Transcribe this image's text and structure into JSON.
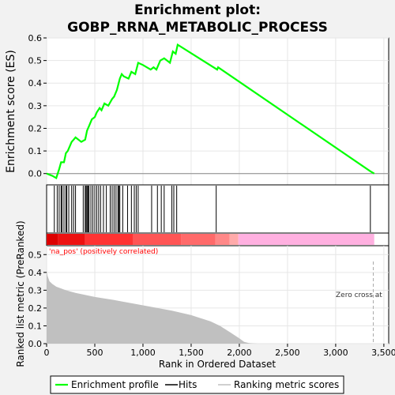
{
  "title_line1": "Enrichment plot:",
  "title_line2": "GOBP_RRNA_METABOLIC_PROCESS",
  "colors": {
    "es_line": "#00ff00",
    "hits": "#000000",
    "metric_fill": "#c0c0c0",
    "pos_note": "#ff0000",
    "zero_cross_line": "#aaaaaa",
    "bar_pos": "#ff0000",
    "bar_neg": "#ffb0e0"
  },
  "chart_data": [
    {
      "type": "line",
      "name": "enrichment-score-panel",
      "ylabel": "Enrichment score (ES)",
      "xlim": [
        0,
        3550
      ],
      "ylim": [
        -0.05,
        0.6
      ],
      "yticks": [
        "0.0",
        "0.1",
        "0.2",
        "0.3",
        "0.4",
        "0.5",
        "0.6"
      ],
      "grid": true,
      "series": [
        {
          "x": [
            0,
            60,
            100,
            130,
            150,
            180,
            200,
            220,
            260,
            280,
            300,
            360,
            400,
            420,
            440,
            470,
            500,
            520,
            550,
            570,
            600,
            640,
            680,
            700,
            730,
            760,
            780,
            800,
            850,
            880,
            920,
            950,
            1000,
            1080,
            1110,
            1140,
            1180,
            1220,
            1280,
            1310,
            1340,
            1360,
            1770,
            1780,
            3360,
            3400
          ],
          "y": [
            0.0,
            -0.01,
            -0.02,
            0.02,
            0.05,
            0.05,
            0.09,
            0.1,
            0.14,
            0.15,
            0.16,
            0.14,
            0.15,
            0.19,
            0.21,
            0.24,
            0.25,
            0.27,
            0.29,
            0.28,
            0.31,
            0.3,
            0.33,
            0.34,
            0.37,
            0.42,
            0.44,
            0.43,
            0.42,
            0.45,
            0.44,
            0.49,
            0.48,
            0.46,
            0.47,
            0.46,
            0.5,
            0.51,
            0.49,
            0.54,
            0.53,
            0.57,
            0.46,
            0.47,
            0.01,
            0.0
          ]
        }
      ]
    },
    {
      "type": "scatter",
      "name": "hits-panel",
      "hits_x": [
        80,
        110,
        130,
        150,
        160,
        180,
        200,
        210,
        230,
        260,
        280,
        300,
        380,
        400,
        410,
        420,
        430,
        440,
        460,
        480,
        500,
        520,
        540,
        560,
        590,
        620,
        660,
        680,
        700,
        720,
        740,
        750,
        760,
        790,
        840,
        880,
        910,
        930,
        950,
        1090,
        1150,
        1190,
        1220,
        1300,
        1320,
        1350,
        1760,
        3360
      ]
    },
    {
      "type": "area",
      "name": "ranked-metric-panel",
      "xlabel": "Rank in Ordered Dataset",
      "ylabel": "Ranked list metric (PreRanked)",
      "xlim": [
        0,
        3550
      ],
      "ylim": [
        0,
        0.55
      ],
      "yticks": [
        "0.0",
        "0.1",
        "0.2",
        "0.3",
        "0.4",
        "0.5"
      ],
      "xticks": [
        "0",
        "500",
        "1,000",
        "1,500",
        "2,000",
        "2,500",
        "3,000",
        "3,500"
      ],
      "grid": true,
      "x": [
        0,
        10,
        30,
        60,
        100,
        200,
        300,
        500,
        700,
        900,
        1100,
        1300,
        1500,
        1700,
        1800,
        1900,
        2000,
        2050,
        2100,
        2150,
        2200,
        2300,
        2500,
        3000,
        3400
      ],
      "y": [
        0.41,
        0.38,
        0.35,
        0.335,
        0.32,
        0.3,
        0.285,
        0.262,
        0.245,
        0.225,
        0.205,
        0.185,
        0.16,
        0.125,
        0.1,
        0.065,
        0.03,
        0.01,
        0.003,
        0.001,
        0.0,
        0.0,
        0.0,
        0.0,
        0.0
      ],
      "pos_note": "'na_pos' (positively correlated)",
      "zero_cross_note": "Zero cross at",
      "zero_cross_x": 3390
    }
  ],
  "legend": {
    "items": [
      {
        "label": "Enrichment profile"
      },
      {
        "label": "Hits"
      },
      {
        "label": "Ranking metric scores"
      }
    ],
    "placement": "bottom"
  }
}
